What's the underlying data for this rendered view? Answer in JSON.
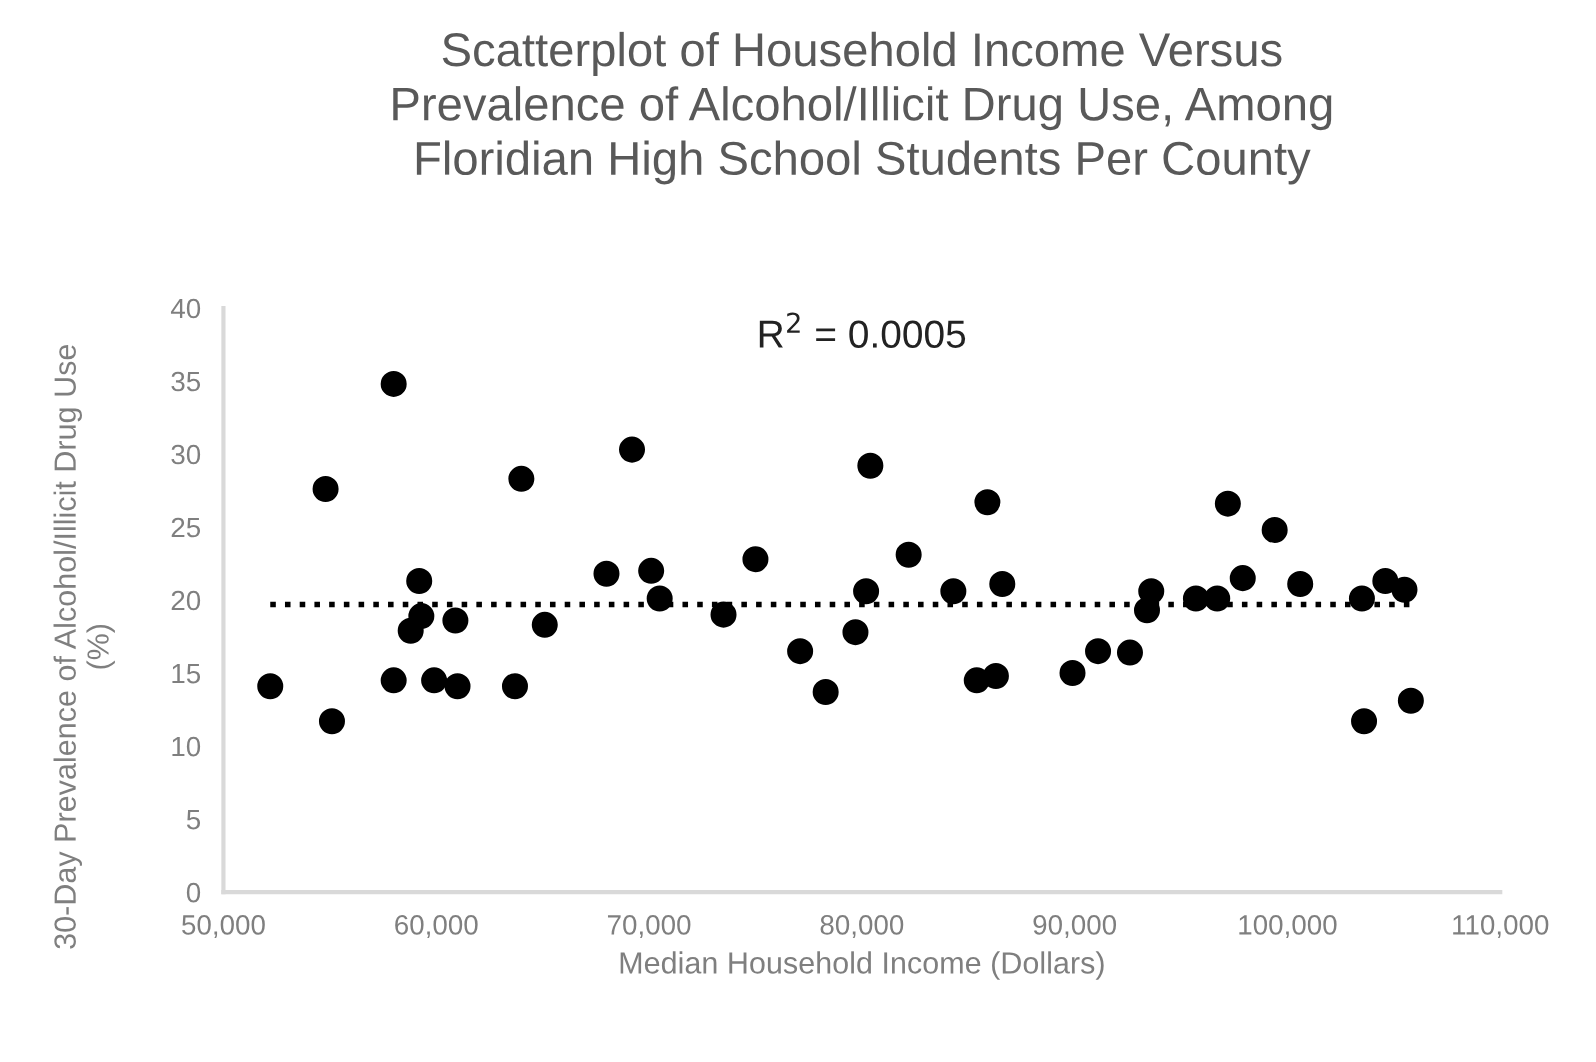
{
  "chart_data": {
    "type": "scatter",
    "title": "Scatterplot of Household Income Versus\nPrevalence of Alcohol/Illicit Drug Use, Among\nFloridian High School Students Per County",
    "xlabel": "Median Household Income (Dollars)",
    "ylabel": "30-Day Prevalence of Alcohol/Illicit Drug Use\n(%)",
    "annotations": [
      "R$^{2}$ = 0.0005"
    ],
    "series": [
      {
        "color": "#000000",
        "marker": "circle",
        "x": [
          52200,
          54800,
          55100,
          58000,
          58000,
          59200,
          58800,
          59300,
          59900,
          61000,
          60900,
          63700,
          64000,
          65100,
          68000,
          69200,
          70100,
          70500,
          73500,
          75000,
          77100,
          78300,
          79700,
          80200,
          80400,
          82200,
          84300,
          85900,
          85400,
          86300,
          86600,
          89900,
          91100,
          92600,
          93600,
          93400,
          95700,
          96700,
          97200,
          97900,
          99400,
          100600,
          103500,
          103600,
          104600,
          105500,
          105800
        ],
        "values": [
          14.1,
          27.6,
          11.7,
          34.8,
          14.5,
          21.3,
          17.9,
          18.9,
          14.5,
          14.1,
          18.6,
          14.1,
          28.3,
          18.3,
          21.8,
          30.3,
          22.0,
          20.1,
          19.0,
          22.8,
          16.5,
          13.7,
          17.8,
          20.6,
          29.2,
          23.1,
          20.6,
          26.7,
          14.5,
          14.8,
          21.1,
          15.0,
          16.5,
          16.4,
          20.6,
          19.3,
          20.1,
          20.1,
          26.6,
          21.5,
          24.8,
          21.1,
          20.1,
          11.7,
          21.3,
          20.7,
          13.1
        ]
      },
      {
        "type": "line",
        "color": "#000000",
        "line_style": "dotted",
        "x": [
          52200,
          105800
        ],
        "values": [
          19.7,
          19.7
        ]
      }
    ],
    "xlim": [
      50000,
      110000
    ],
    "ylim": [
      0,
      40
    ],
    "xticks": [
      {
        "value": 50000,
        "label": "50,000"
      },
      {
        "value": 60000,
        "label": "60,000"
      },
      {
        "value": 70000,
        "label": "70,000"
      },
      {
        "value": 80000,
        "label": "80,000"
      },
      {
        "value": 90000,
        "label": "90,000"
      },
      {
        "value": 100000,
        "label": "100,000"
      },
      {
        "value": 110000,
        "label": "110,000"
      }
    ],
    "yticks": [
      0,
      5,
      10,
      15,
      20,
      25,
      30,
      35,
      40
    ],
    "grid": false,
    "legend": false
  }
}
